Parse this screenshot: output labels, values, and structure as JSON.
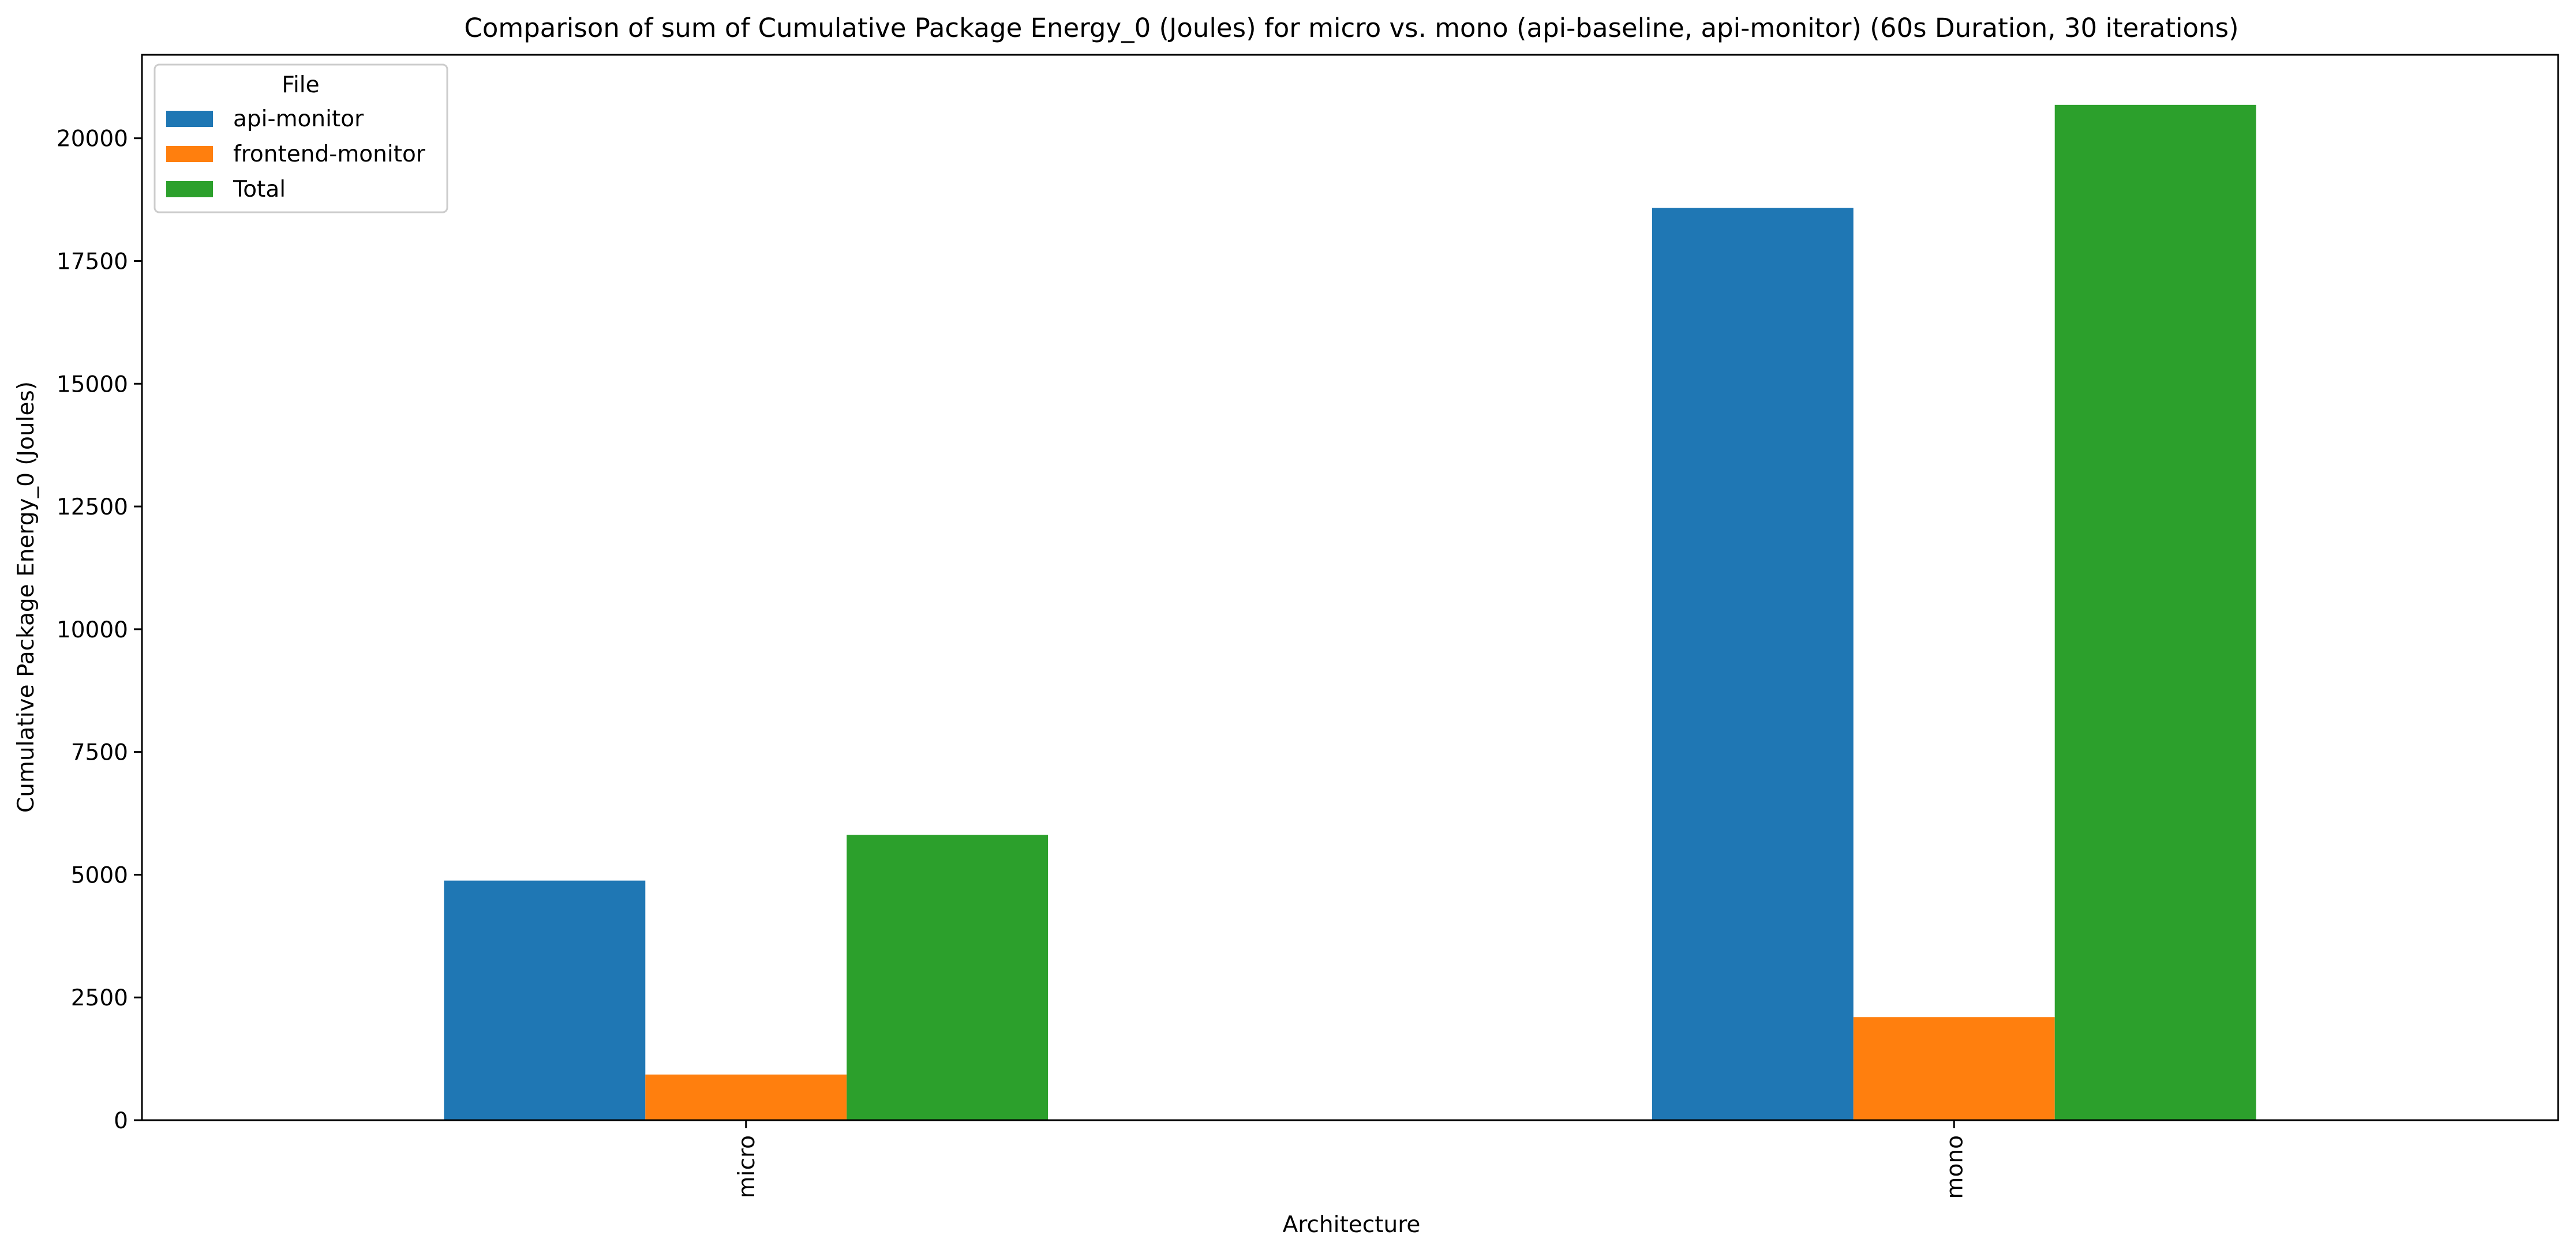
{
  "chart_data": {
    "type": "bar",
    "title": "Comparison of sum of Cumulative Package Energy_0 (Joules) for micro vs. mono (api-baseline, api-monitor) (60s Duration, 30 iterations)",
    "xlabel": "Architecture",
    "ylabel": "Cumulative Package Energy_0 (Joules)",
    "categories": [
      "micro",
      "mono"
    ],
    "series": [
      {
        "name": "api-monitor",
        "color": "#1f77b4",
        "values": [
          4880,
          18580
        ]
      },
      {
        "name": "frontend-monitor",
        "color": "#ff7f0e",
        "values": [
          930,
          2100
        ]
      },
      {
        "name": "Total",
        "color": "#2ca02c",
        "values": [
          5810,
          20680
        ]
      }
    ],
    "ylim": [
      0,
      21700
    ],
    "yticks": [
      0,
      2500,
      5000,
      7500,
      10000,
      12500,
      15000,
      17500,
      20000
    ],
    "ytick_labels": [
      "0",
      "2500",
      "5000",
      "7500",
      "10000",
      "12500",
      "15000",
      "17500",
      "20000"
    ],
    "grid": false,
    "legend": {
      "title": "File",
      "placement": "top-left"
    }
  }
}
